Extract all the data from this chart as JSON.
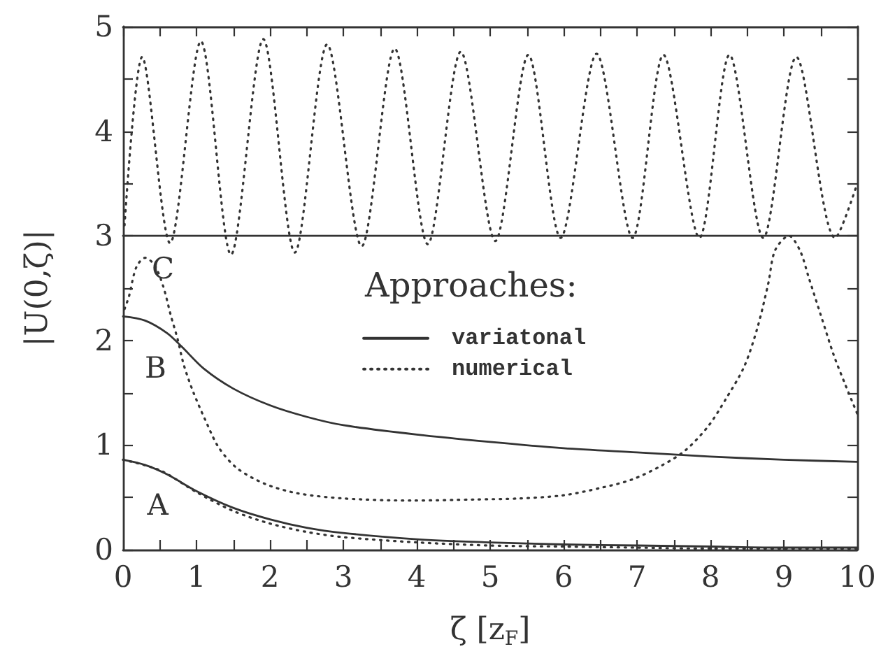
{
  "chart_data": {
    "type": "line",
    "xlabel": "ζ [z$_{F}$]",
    "ylabel": "|U(0,ζ)|",
    "legend_title": "Approaches:",
    "legend": "center",
    "xlim": [
      0,
      10
    ],
    "ylim": [
      0,
      5
    ],
    "xticks": [
      0,
      {
        "value": 0.5,
        "label": null
      },
      1,
      {
        "value": 1.5,
        "label": null
      },
      2,
      {
        "value": 2.5,
        "label": null
      },
      3,
      {
        "value": 3.5,
        "label": null
      },
      4,
      {
        "value": 4.5,
        "label": null
      },
      5,
      {
        "value": 5.5,
        "label": null
      },
      6,
      {
        "value": 6.5,
        "label": null
      },
      7,
      {
        "value": 7.5,
        "label": null
      },
      8,
      {
        "value": 8.5,
        "label": null
      },
      9,
      {
        "value": 9.5,
        "label": null
      },
      10
    ],
    "yticks": [
      0,
      {
        "value": 0.5,
        "label": null
      },
      1,
      {
        "value": 1.5,
        "label": null
      },
      2,
      {
        "value": 2.5,
        "label": null
      },
      3,
      {
        "value": 3.5,
        "label": null
      },
      4,
      {
        "value": 4.5,
        "label": null
      },
      5
    ],
    "series": [
      {
        "name": "variatonal",
        "color": "#333333",
        "line_style": "solid",
        "x": [
          0,
          0.3,
          0.6,
          1,
          1.5,
          2,
          2.5,
          3,
          4,
          5,
          6,
          7,
          8,
          9,
          10
        ],
        "values": [
          0.86,
          0.81,
          0.72,
          0.56,
          0.4,
          0.29,
          0.21,
          0.16,
          0.1,
          0.07,
          0.05,
          0.04,
          0.03,
          0.02,
          0.02
        ]
      },
      {
        "name": "numerical",
        "color": "#333333",
        "line_style": "dotted",
        "x": [
          0,
          0.5,
          1,
          1.5,
          2,
          2.5,
          3,
          4,
          5,
          6,
          7,
          8,
          9,
          10
        ],
        "values": [
          0.86,
          0.76,
          0.55,
          0.37,
          0.25,
          0.17,
          0.12,
          0.07,
          0.04,
          0.03,
          0.02,
          0.01,
          0.01,
          0.01
        ]
      },
      {
        "color": "#333333",
        "line_style": "solid",
        "x": [
          0,
          0.3,
          0.6,
          0.8,
          1.1,
          1.5,
          2,
          2.5,
          3,
          4,
          5,
          6,
          7,
          8,
          9,
          10
        ],
        "values": [
          2.23,
          2.19,
          2.07,
          1.94,
          1.73,
          1.54,
          1.38,
          1.27,
          1.19,
          1.1,
          1.03,
          0.97,
          0.93,
          0.89,
          0.86,
          0.84
        ]
      },
      {
        "color": "#333333",
        "line_style": "dotted",
        "x": [
          0.02,
          0.08,
          0.18,
          0.3,
          0.43,
          0.55,
          0.65,
          0.74,
          0.83,
          0.96,
          1.12,
          1.3,
          1.55,
          1.93,
          2.37,
          3,
          3.93,
          4.8,
          5.4,
          6,
          6.5,
          6.93,
          7.35,
          7.66,
          7.97,
          8.21,
          8.46,
          8.64,
          8.79,
          8.88,
          9.07,
          9.22,
          9.34,
          9.5,
          9.68,
          9.83,
          10
        ],
        "values": [
          2.3,
          2.42,
          2.7,
          2.79,
          2.72,
          2.51,
          2.24,
          2.02,
          1.76,
          1.5,
          1.24,
          0.98,
          0.78,
          0.63,
          0.54,
          0.49,
          0.47,
          0.48,
          0.49,
          0.52,
          0.59,
          0.67,
          0.81,
          0.95,
          1.18,
          1.44,
          1.75,
          2.12,
          2.55,
          2.86,
          3,
          2.86,
          2.6,
          2.25,
          1.86,
          1.59,
          1.3
        ]
      },
      {
        "color": "#333333",
        "line_style": "solid",
        "x": [
          0,
          10
        ],
        "values": [
          3,
          3
        ]
      },
      {
        "color": "#333333",
        "line_style": "dotted",
        "x": [
          0.02,
          0.26,
          0.64,
          1.06,
          1.47,
          1.91,
          2.34,
          2.78,
          3.25,
          3.7,
          4.15,
          4.6,
          5.07,
          5.52,
          5.96,
          6.45,
          6.94,
          7.36,
          7.85,
          8.26,
          8.72,
          9.17,
          9.7,
          10
        ],
        "values": [
          3.1,
          4.71,
          2.93,
          4.86,
          2.82,
          4.88,
          2.84,
          4.83,
          2.9,
          4.79,
          2.92,
          4.76,
          2.95,
          4.73,
          2.98,
          4.74,
          2.98,
          4.73,
          2.98,
          4.73,
          2.98,
          4.71,
          2.98,
          3.5
        ]
      }
    ],
    "annotations": [
      "A",
      "B",
      "C"
    ]
  }
}
